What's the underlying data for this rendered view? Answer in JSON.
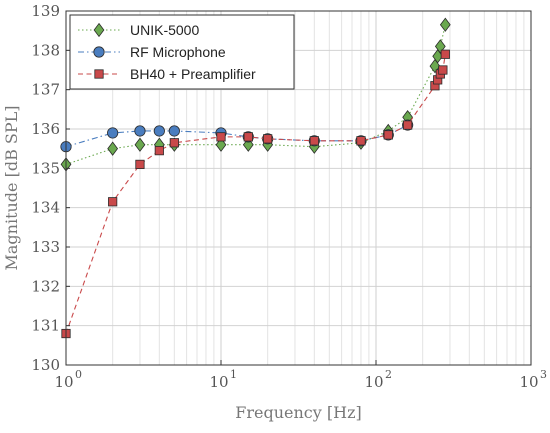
{
  "chart_data": {
    "type": "line",
    "xlabel": "Frequency [Hz]",
    "ylabel": "Magnitude [dB SPL]",
    "xscale": "log",
    "xlim": [
      1,
      1000
    ],
    "ylim": [
      130,
      139
    ],
    "grid": true,
    "legend_position": "top-left",
    "x_tick_labels": [
      {
        "value": 1,
        "base": "10",
        "exp": "0"
      },
      {
        "value": 10,
        "base": "10",
        "exp": "1"
      },
      {
        "value": 100,
        "base": "10",
        "exp": "2"
      },
      {
        "value": 1000,
        "base": "10",
        "exp": "3"
      }
    ],
    "y_ticks": [
      130,
      131,
      132,
      133,
      134,
      135,
      136,
      137,
      138,
      139
    ],
    "series": [
      {
        "name": "UNIK-5000",
        "color": "#6aa84f",
        "marker": "diamond",
        "line_style": "dotted",
        "x": [
          1,
          2,
          3,
          4,
          5,
          10,
          15,
          20,
          40,
          80,
          120,
          160,
          240,
          250,
          260,
          280
        ],
        "y": [
          135.1,
          135.5,
          135.6,
          135.6,
          135.6,
          135.6,
          135.6,
          135.6,
          135.55,
          135.65,
          135.95,
          136.3,
          137.6,
          137.85,
          138.1,
          138.65
        ]
      },
      {
        "name": "RF Microphone",
        "color": "#4a7dbf",
        "marker": "circle",
        "line_style": "dashdot",
        "x": [
          1,
          2,
          3,
          4,
          5,
          10,
          15,
          20,
          40,
          80,
          120,
          160
        ],
        "y": [
          135.55,
          135.9,
          135.95,
          135.95,
          135.95,
          135.9,
          135.8,
          135.75,
          135.7,
          135.7,
          135.85,
          136.1
        ]
      },
      {
        "name": "BH40 + Preamplifier",
        "color": "#c9494a",
        "marker": "square",
        "line_style": "dashed",
        "x": [
          1,
          2,
          3,
          4,
          5,
          10,
          15,
          20,
          40,
          80,
          120,
          160,
          240,
          250,
          260,
          270,
          280
        ],
        "y": [
          130.8,
          134.15,
          135.1,
          135.45,
          135.65,
          135.8,
          135.8,
          135.75,
          135.7,
          135.7,
          135.85,
          136.1,
          137.1,
          137.25,
          137.4,
          137.5,
          137.9
        ]
      }
    ]
  }
}
